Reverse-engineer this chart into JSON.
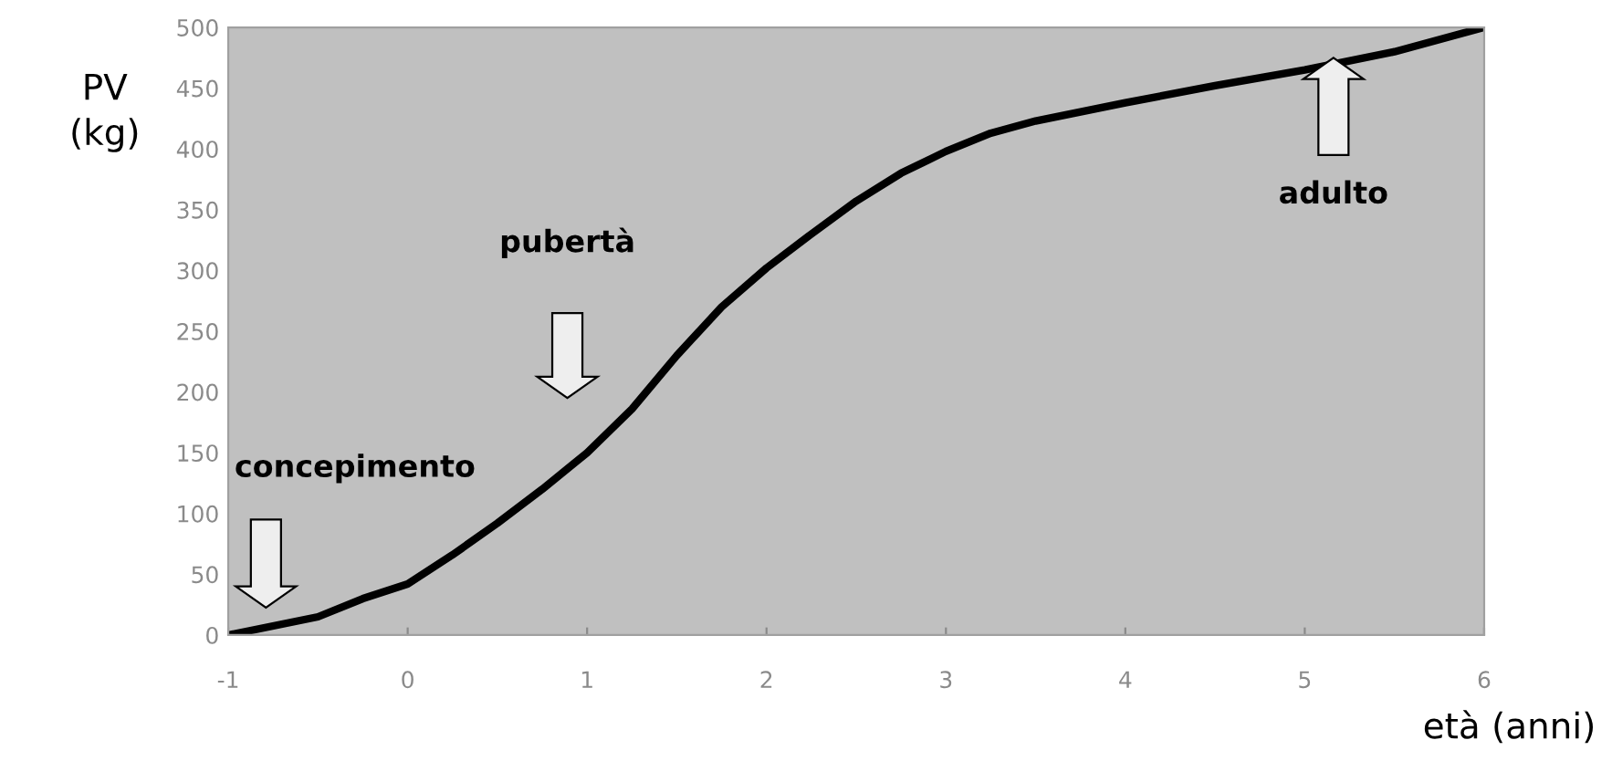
{
  "chart_data": {
    "type": "line",
    "xlabel": "età (anni)",
    "ylabel": "PV\n(kg)",
    "x": [
      -1,
      -0.5,
      -0.25,
      0,
      0.25,
      0.5,
      0.75,
      1,
      1.25,
      1.5,
      1.75,
      2,
      2.25,
      2.5,
      2.75,
      3,
      3.25,
      3.5,
      4,
      4.5,
      5,
      5.5,
      6
    ],
    "series": [
      {
        "color": "#000000",
        "values": [
          0,
          15,
          30,
          42,
          66,
          92,
          120,
          150,
          186,
          230,
          270,
          302,
          330,
          357,
          380,
          398,
          413,
          423,
          438,
          452,
          465,
          480,
          500
        ]
      }
    ],
    "xlim": [
      -1,
      6
    ],
    "xticks": [
      -1,
      0,
      1,
      2,
      3,
      4,
      5,
      6
    ],
    "ylim": [
      0,
      500
    ],
    "yticks": [
      0,
      50,
      100,
      150,
      200,
      250,
      300,
      350,
      400,
      450,
      500
    ],
    "grid": false,
    "marker": "none",
    "line_style": "solid",
    "annotations": [
      "concepimento",
      "pubertà",
      "adulto"
    ]
  }
}
